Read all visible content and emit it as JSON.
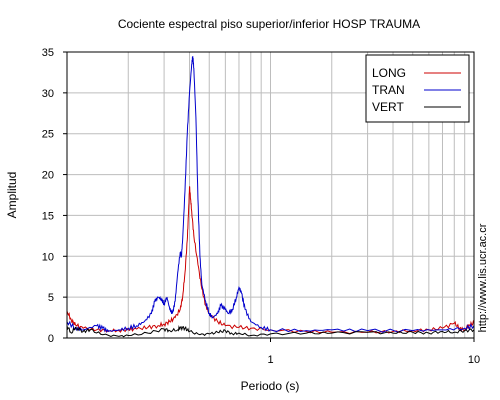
{
  "chart_data": {
    "type": "line",
    "title": "Cociente espectral piso superior/inferior  HOSP TRAUMA",
    "xlabel": "Periodo (s)",
    "ylabel": "Amplitud",
    "xscale": "log",
    "xlim": [
      0.1,
      10
    ],
    "ylim": [
      0,
      35
    ],
    "x_tick_labels": [
      "1",
      "10"
    ],
    "y_tick_labels": [
      "0",
      "5",
      "10",
      "15",
      "20",
      "25",
      "30",
      "35"
    ],
    "yticks": [
      0,
      5,
      10,
      15,
      20,
      25,
      30,
      35
    ],
    "grid": true,
    "legend_position": "top-right",
    "series": [
      {
        "name": "LONG",
        "color": "#cc0000",
        "points": [
          [
            0.1,
            3.3
          ],
          [
            0.105,
            2.2
          ],
          [
            0.11,
            1.6
          ],
          [
            0.12,
            1.2
          ],
          [
            0.14,
            1.0
          ],
          [
            0.16,
            0.9
          ],
          [
            0.18,
            0.9
          ],
          [
            0.2,
            1.0
          ],
          [
            0.22,
            1.1
          ],
          [
            0.25,
            1.3
          ],
          [
            0.28,
            1.5
          ],
          [
            0.3,
            1.7
          ],
          [
            0.32,
            2.0
          ],
          [
            0.34,
            2.5
          ],
          [
            0.36,
            3.5
          ],
          [
            0.37,
            5.0
          ],
          [
            0.38,
            8.0
          ],
          [
            0.39,
            12.0
          ],
          [
            0.395,
            15.0
          ],
          [
            0.4,
            18.5
          ],
          [
            0.405,
            17.0
          ],
          [
            0.41,
            15.5
          ],
          [
            0.42,
            12.5
          ],
          [
            0.44,
            9.0
          ],
          [
            0.46,
            6.0
          ],
          [
            0.48,
            4.0
          ],
          [
            0.5,
            3.0
          ],
          [
            0.55,
            2.0
          ],
          [
            0.6,
            1.5
          ],
          [
            0.7,
            1.3
          ],
          [
            0.8,
            1.2
          ],
          [
            1.0,
            1.0
          ],
          [
            1.5,
            0.8
          ],
          [
            2.0,
            0.7
          ],
          [
            3.0,
            0.7
          ],
          [
            4.0,
            0.8
          ],
          [
            5.0,
            0.9
          ],
          [
            6.0,
            1.0
          ],
          [
            7.0,
            1.2
          ],
          [
            8.0,
            1.8
          ],
          [
            8.5,
            1.2
          ],
          [
            9.0,
            1.0
          ],
          [
            9.5,
            1.6
          ],
          [
            10.0,
            1.8
          ]
        ]
      },
      {
        "name": "TRAN",
        "color": "#0000cc",
        "points": [
          [
            0.1,
            2.0
          ],
          [
            0.11,
            1.2
          ],
          [
            0.12,
            1.0
          ],
          [
            0.14,
            1.5
          ],
          [
            0.15,
            1.2
          ],
          [
            0.16,
            0.8
          ],
          [
            0.18,
            1.0
          ],
          [
            0.2,
            1.2
          ],
          [
            0.22,
            1.5
          ],
          [
            0.24,
            2.0
          ],
          [
            0.26,
            3.0
          ],
          [
            0.27,
            4.5
          ],
          [
            0.28,
            5.0
          ],
          [
            0.29,
            4.8
          ],
          [
            0.3,
            4.2
          ],
          [
            0.31,
            5.0
          ],
          [
            0.32,
            3.5
          ],
          [
            0.33,
            3.0
          ],
          [
            0.34,
            4.5
          ],
          [
            0.35,
            8.0
          ],
          [
            0.36,
            10.5
          ],
          [
            0.365,
            10.0
          ],
          [
            0.37,
            12.0
          ],
          [
            0.38,
            18.0
          ],
          [
            0.39,
            25.0
          ],
          [
            0.4,
            30.0
          ],
          [
            0.41,
            33.5
          ],
          [
            0.415,
            34.5
          ],
          [
            0.42,
            33.0
          ],
          [
            0.43,
            27.0
          ],
          [
            0.44,
            17.0
          ],
          [
            0.45,
            10.0
          ],
          [
            0.46,
            6.5
          ],
          [
            0.48,
            4.5
          ],
          [
            0.5,
            3.0
          ],
          [
            0.52,
            2.5
          ],
          [
            0.55,
            3.0
          ],
          [
            0.57,
            4.0
          ],
          [
            0.6,
            3.5
          ],
          [
            0.62,
            3.0
          ],
          [
            0.65,
            3.5
          ],
          [
            0.68,
            5.0
          ],
          [
            0.7,
            6.2
          ],
          [
            0.72,
            5.5
          ],
          [
            0.75,
            3.5
          ],
          [
            0.8,
            2.0
          ],
          [
            0.9,
            1.3
          ],
          [
            1.0,
            1.0
          ],
          [
            1.5,
            0.9
          ],
          [
            2.0,
            1.0
          ],
          [
            3.0,
            0.9
          ],
          [
            5.0,
            0.9
          ],
          [
            7.0,
            1.0
          ],
          [
            9.0,
            1.2
          ],
          [
            10.0,
            1.5
          ]
        ]
      },
      {
        "name": "VERT",
        "color": "#000000",
        "points": [
          [
            0.1,
            1.5
          ],
          [
            0.105,
            0.6
          ],
          [
            0.11,
            1.3
          ],
          [
            0.12,
            0.8
          ],
          [
            0.13,
            1.0
          ],
          [
            0.15,
            0.4
          ],
          [
            0.18,
            0.2
          ],
          [
            0.2,
            0.3
          ],
          [
            0.25,
            0.6
          ],
          [
            0.3,
            1.1
          ],
          [
            0.32,
            0.9
          ],
          [
            0.35,
            1.0
          ],
          [
            0.36,
            1.3
          ],
          [
            0.38,
            1.2
          ],
          [
            0.4,
            0.8
          ],
          [
            0.45,
            0.4
          ],
          [
            0.5,
            0.5
          ],
          [
            0.55,
            0.7
          ],
          [
            0.6,
            0.9
          ],
          [
            0.65,
            0.5
          ],
          [
            0.7,
            0.6
          ],
          [
            0.8,
            0.3
          ],
          [
            1.0,
            0.5
          ],
          [
            1.5,
            0.6
          ],
          [
            2.0,
            0.6
          ],
          [
            3.0,
            0.7
          ],
          [
            4.0,
            0.6
          ],
          [
            5.0,
            0.7
          ],
          [
            6.0,
            0.6
          ],
          [
            7.0,
            0.8
          ],
          [
            8.0,
            0.7
          ],
          [
            9.0,
            0.9
          ],
          [
            10.0,
            1.0
          ]
        ]
      }
    ]
  },
  "watermark": "http://www.lis.ucr.ac.cr"
}
